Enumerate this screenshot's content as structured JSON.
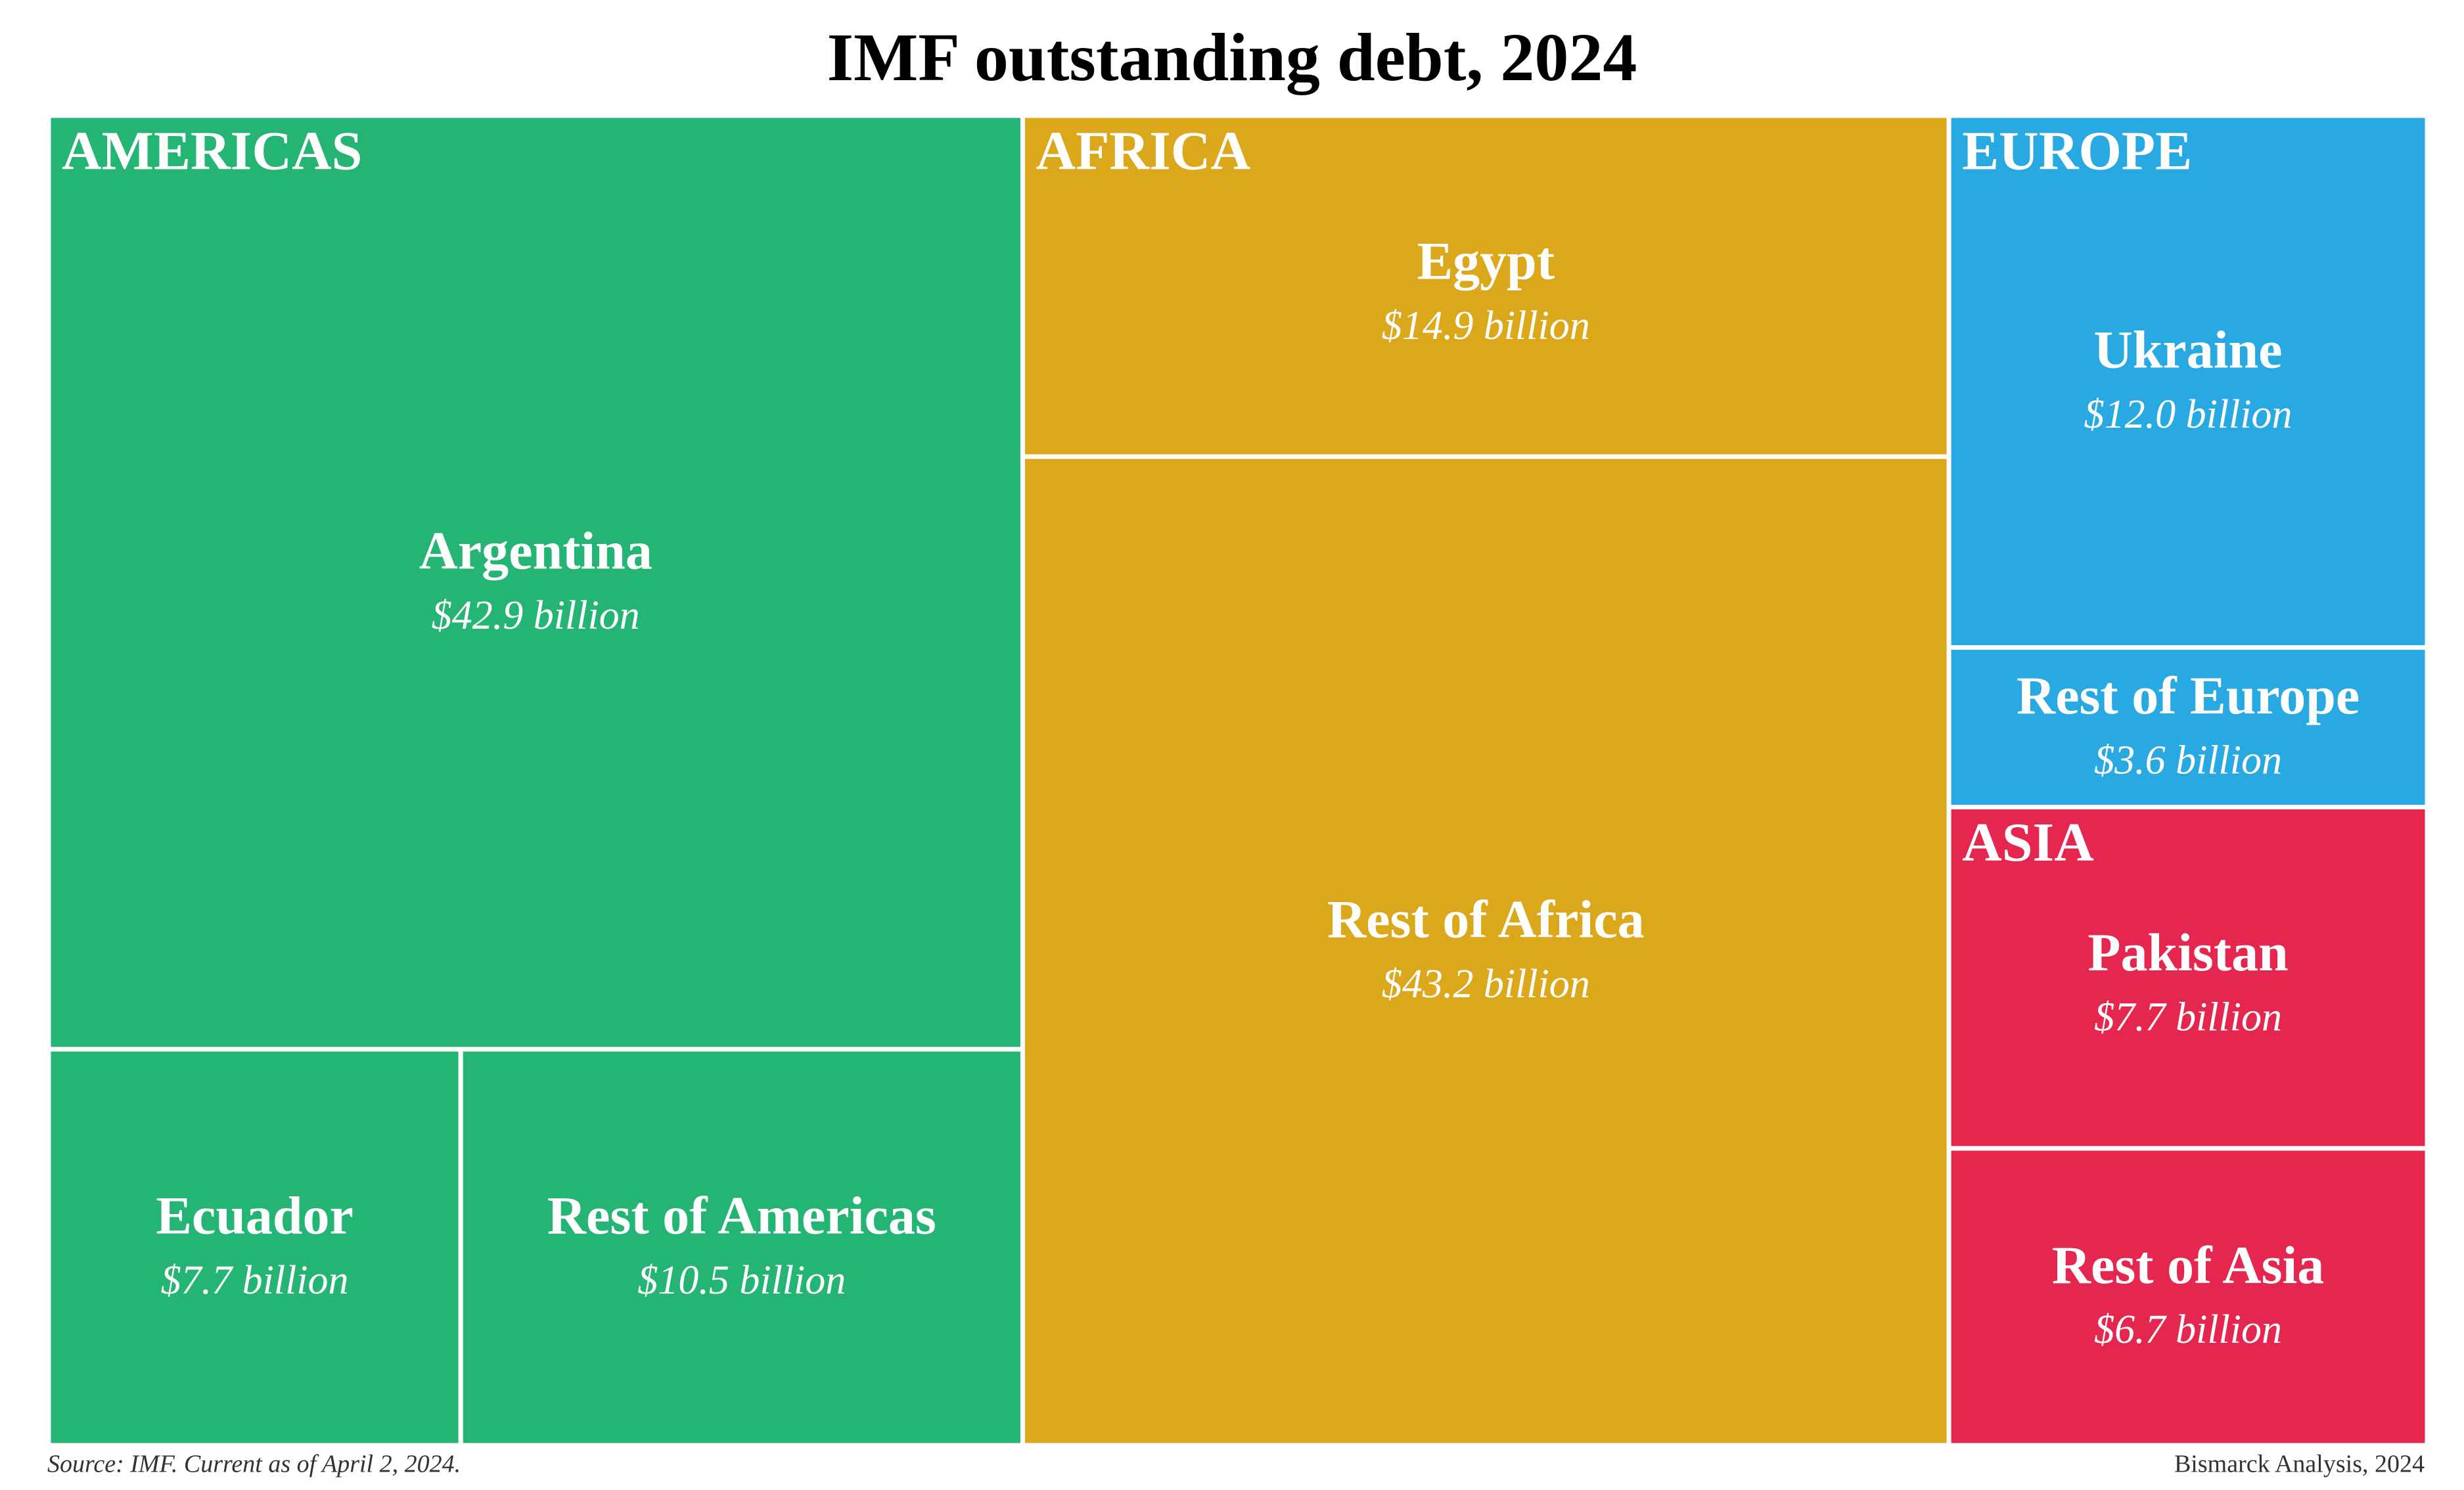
{
  "chart_data": {
    "type": "treemap",
    "title": "IMF outstanding debt, 2024",
    "source": "Source: IMF. Current as of April 2, 2024.",
    "credit": "Bismarck Analysis, 2024",
    "groups": [
      {
        "name": "AMERICAS",
        "color": "#24b474",
        "categories": [
          "Argentina",
          "Ecuador",
          "Rest of Americas"
        ],
        "values": [
          42.9,
          7.7,
          10.5
        ],
        "value_labels": [
          "$42.9 billion",
          "$7.7 billion",
          "$10.5 billion"
        ]
      },
      {
        "name": "AFRICA",
        "color": "#dba71b",
        "categories": [
          "Egypt",
          "Rest of Africa"
        ],
        "values": [
          14.9,
          43.2
        ],
        "value_labels": [
          "$14.9 billion",
          "$43.2 billion"
        ]
      },
      {
        "name": "EUROPE",
        "color": "#29a9e1",
        "categories": [
          "Ukraine",
          "Rest of Europe"
        ],
        "values": [
          12.0,
          3.6
        ],
        "value_labels": [
          "$12.0 billion",
          "$3.6 billion"
        ]
      },
      {
        "name": "ASIA",
        "color": "#e5264f",
        "categories": [
          "Pakistan",
          "Rest of Asia"
        ],
        "values": [
          7.7,
          6.7
        ],
        "value_labels": [
          "$7.7 billion",
          "$6.7 billion"
        ]
      }
    ]
  }
}
